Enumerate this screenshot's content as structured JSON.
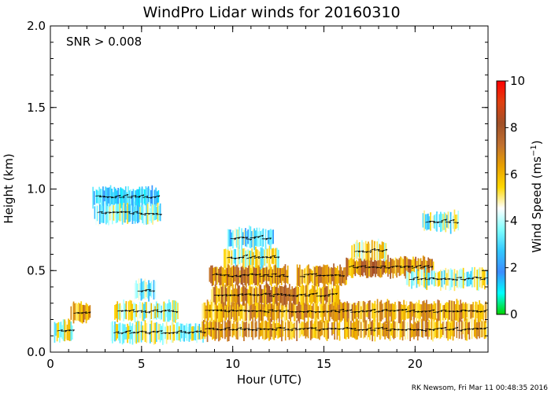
{
  "chart_data": {
    "type": "heatmap",
    "title": "WindPro Lidar winds for 20160310",
    "xlabel": "Hour (UTC)",
    "ylabel": "Height (km)",
    "xlim": [
      0,
      24
    ],
    "ylim": [
      0,
      2.0
    ],
    "xticks": [
      "0",
      "5",
      "10",
      "15",
      "20"
    ],
    "yticks": [
      "0.0",
      "0.5",
      "1.0",
      "1.5",
      "2.0"
    ],
    "annotation": "SNR > 0.008",
    "credit": "RK Newsom, Fri Mar 11 00:48:35 2016",
    "colorbar": {
      "label_main": "Wind Speed (ms",
      "label_sup": "−1",
      "label_close": ")",
      "range": [
        0,
        10
      ],
      "ticks": [
        "0",
        "2",
        "4",
        "6",
        "8",
        "10"
      ],
      "colors": [
        "#00d400",
        "#00ffff",
        "#3c8cff",
        "#32c8ff",
        "#80ffff",
        "#ffffff",
        "#ffd700",
        "#e8a000",
        "#c07030",
        "#a05028",
        "#e04010",
        "#ff0000"
      ]
    },
    "series": [
      {
        "x": [
          0.2,
          1.2
        ],
        "y": 0.13,
        "speed": 4.5
      },
      {
        "x": [
          1.1,
          2.2
        ],
        "y": 0.24,
        "speed": 6.2
      },
      {
        "x": [
          2.3,
          5.9
        ],
        "y": 0.95,
        "speed": 2.5
      },
      {
        "x": [
          2.4,
          6.0
        ],
        "y": 0.85,
        "speed": 3.8
      },
      {
        "x": [
          3.3,
          8.5
        ],
        "y": 0.12,
        "speed": 4.2
      },
      {
        "x": [
          3.5,
          7.0
        ],
        "y": 0.25,
        "speed": 4.5
      },
      {
        "x": [
          4.6,
          5.8
        ],
        "y": 0.38,
        "speed": 4.0
      },
      {
        "x": [
          8.3,
          24.0
        ],
        "y": 0.14,
        "speed": 6.0
      },
      {
        "x": [
          8.3,
          24.0
        ],
        "y": 0.25,
        "speed": 6.2
      },
      {
        "x": [
          8.8,
          15.8
        ],
        "y": 0.35,
        "speed": 6.5
      },
      {
        "x": [
          8.7,
          13.0
        ],
        "y": 0.47,
        "speed": 6.8
      },
      {
        "x": [
          9.5,
          12.5
        ],
        "y": 0.58,
        "speed": 4.5
      },
      {
        "x": [
          9.7,
          12.2
        ],
        "y": 0.7,
        "speed": 3.5
      },
      {
        "x": [
          13.5,
          16.2
        ],
        "y": 0.47,
        "speed": 6.5
      },
      {
        "x": [
          16.2,
          21.0
        ],
        "y": 0.52,
        "speed": 6.8
      },
      {
        "x": [
          16.5,
          18.4
        ],
        "y": 0.62,
        "speed": 5.0
      },
      {
        "x": [
          19.5,
          24.0
        ],
        "y": 0.45,
        "speed": 4.2
      },
      {
        "x": [
          20.4,
          22.4
        ],
        "y": 0.8,
        "speed": 4.0
      }
    ]
  }
}
